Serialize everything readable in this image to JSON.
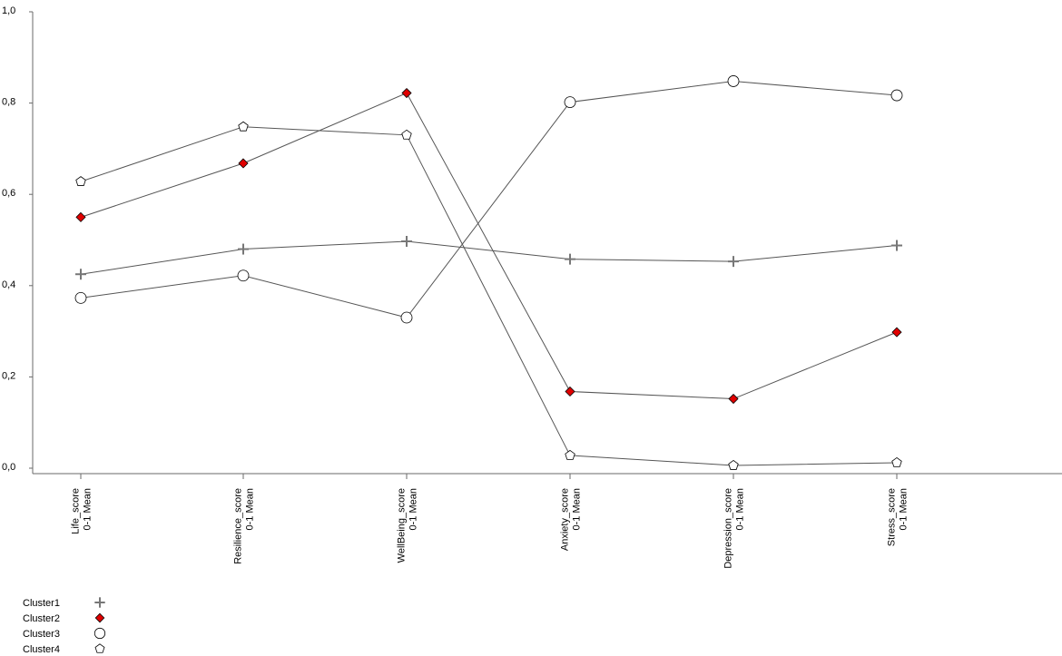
{
  "chart_data": {
    "type": "line",
    "categories": [
      [
        "Life_score",
        "0-1 Mean"
      ],
      [
        "Resilience_score",
        "0-1 Mean"
      ],
      [
        "WellBeing_score",
        "0-1 Mean"
      ],
      [
        "Anxiety_score",
        "0-1 Mean"
      ],
      [
        "Depression_score",
        "0-1 Mean"
      ],
      [
        "Stress_score",
        "0-1 Mean"
      ]
    ],
    "y_ticks": [
      "0,0",
      "0,2",
      "0,4",
      "0,6",
      "0,8",
      "1,0"
    ],
    "ylim": [
      0,
      1
    ],
    "grid": false,
    "legend_position": "bottom-left",
    "series": [
      {
        "name": "Cluster1",
        "marker": "plus",
        "color": "#777777",
        "label_color": "#000000",
        "values": [
          0.425,
          0.48,
          0.497,
          0.458,
          0.453,
          0.488
        ]
      },
      {
        "name": "Cluster2",
        "marker": "diamond",
        "color": "#e00000",
        "label_color": "#e00000",
        "values": [
          0.55,
          0.668,
          0.822,
          0.168,
          0.152,
          0.298
        ]
      },
      {
        "name": "Cluster3",
        "marker": "circle",
        "color": "#ffffff",
        "label_color": "#000000",
        "values": [
          0.373,
          0.422,
          0.33,
          0.802,
          0.848,
          0.817
        ]
      },
      {
        "name": "Cluster4",
        "marker": "pentagon",
        "color": "#ffffff",
        "label_color": "#000000",
        "values": [
          0.628,
          0.748,
          0.73,
          0.028,
          0.006,
          0.012
        ]
      }
    ]
  }
}
